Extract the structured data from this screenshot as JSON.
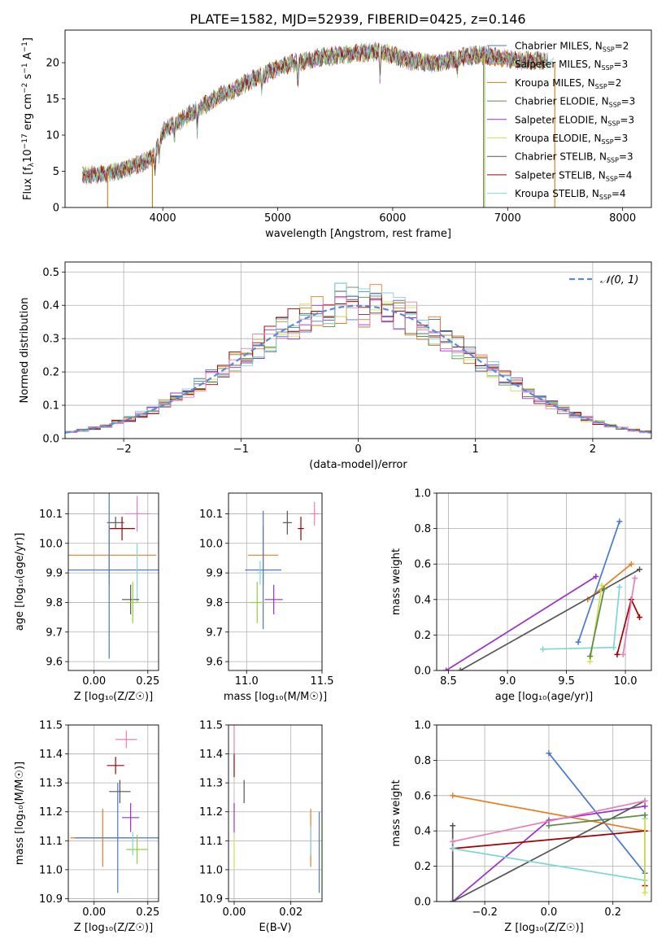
{
  "figure": {
    "title": "PLATE=1582, MJD=52939, FIBERID=0425, z=0.146",
    "colors": [
      "#4878cf",
      "#e67e22",
      "#b8860b",
      "#5a8a46",
      "#9b30c8",
      "#d4e04c",
      "#555555",
      "#a00000",
      "#7fd6d6",
      "#e87fb8",
      "#8fd03c",
      "#d94d2b"
    ]
  },
  "chart_data": [
    {
      "id": "spectrum",
      "type": "line",
      "xlabel": "wavelength [Angstrom, rest frame]",
      "ylabel_parts": [
        "Flux [f",
        "λ",
        "10",
        "−17",
        " erg cm",
        "−2",
        " s",
        "−1",
        " A",
        "−1",
        "]"
      ],
      "xlim": [
        3150,
        8250
      ],
      "ylim": [
        0,
        24.5
      ],
      "xticks": [
        4000,
        5000,
        6000,
        7000,
        8000
      ],
      "yticks": [
        0,
        5,
        10,
        15,
        20
      ],
      "grid": false,
      "legend_position": "top-right",
      "continuum": {
        "x": [
          3300,
          3450,
          3600,
          3700,
          3800,
          3900,
          3950,
          4000,
          4100,
          4200,
          4300,
          4400,
          4500,
          4600,
          4700,
          4800,
          4900,
          5000,
          5100,
          5200,
          5300,
          5400,
          5500,
          5600,
          5700,
          5800,
          5900,
          6000,
          6100,
          6200,
          6300,
          6400,
          6500,
          6600,
          6700,
          6800,
          6900,
          7000,
          7100,
          7200,
          7300,
          7350,
          7400
        ],
        "y": [
          4.5,
          4.6,
          5.0,
          5.5,
          6.0,
          6.8,
          8.2,
          10.5,
          11.5,
          12.5,
          13.5,
          14.5,
          15.5,
          16.0,
          17.0,
          17.8,
          18.5,
          19.3,
          19.8,
          20.1,
          20.5,
          20.8,
          21.0,
          21.1,
          21.3,
          21.5,
          21.5,
          21.0,
          20.5,
          20.2,
          20.0,
          20.0,
          20.3,
          20.8,
          21.0,
          21.0,
          20.8,
          20.5,
          20.3,
          20.3,
          20.3,
          20.2,
          20.0
        ]
      },
      "series": [
        {
          "name": "Chabrier MILES, N",
          "sub": "SSP",
          "n": "=2",
          "color": "#4878cf"
        },
        {
          "name": "Salpeter MILES, N",
          "sub": "SSP",
          "n": "=3",
          "color": "#e67e22"
        },
        {
          "name": "Kroupa MILES, N",
          "sub": "SSP",
          "n": "=2",
          "color": "#b8860b"
        },
        {
          "name": "Chabrier ELODIE, N",
          "sub": "SSP",
          "n": "=3",
          "color": "#5a8a46"
        },
        {
          "name": "Salpeter ELODIE, N",
          "sub": "SSP",
          "n": "=3",
          "color": "#9b30c8"
        },
        {
          "name": "Kroupa ELODIE, N",
          "sub": "SSP",
          "n": "=3",
          "color": "#d4e04c"
        },
        {
          "name": "Chabrier STELIB, N",
          "sub": "SSP",
          "n": "=3",
          "color": "#555555"
        },
        {
          "name": "Salpeter STELIB, N",
          "sub": "SSP",
          "n": "=4",
          "color": "#a00000"
        },
        {
          "name": "Kroupa STELIB, N",
          "sub": "SSP",
          "n": "=4",
          "color": "#7fd6d6"
        }
      ],
      "verticals": [
        {
          "x": 3520,
          "color": "#e67e22"
        },
        {
          "x": 3910,
          "color": "#b8860b"
        },
        {
          "x": 6790,
          "color": "#b8860b"
        },
        {
          "x": 6800,
          "color": "#7fd6d6"
        },
        {
          "x": 7410,
          "color": "#e67e22"
        }
      ]
    },
    {
      "id": "residuals",
      "type": "bar",
      "xlabel": "(data-model)/error",
      "ylabel": "Normed distribution",
      "xlim": [
        -2.5,
        2.5
      ],
      "ylim": [
        0,
        0.53
      ],
      "xticks": [
        -2,
        -1,
        0,
        1,
        2
      ],
      "yticks": [
        0.0,
        0.1,
        0.2,
        0.3,
        0.4,
        0.5
      ],
      "grid": true,
      "bin_width": 0.1,
      "legend_position": "top-right",
      "legend_label": "𝒩(0, 1)",
      "curve_color": "#5b8bd6"
    },
    {
      "id": "age-vs-z",
      "type": "scatter",
      "xlabel": "Z [log₁₀(Z/Z☉)]",
      "ylabel": "age  [log₁₀(age/yr)]",
      "xlim": [
        -0.12,
        0.3
      ],
      "ylim": [
        9.57,
        10.17
      ],
      "xticks": [
        0.0,
        0.25
      ],
      "yticks": [
        9.6,
        9.7,
        9.8,
        9.9,
        10.0,
        10.1
      ],
      "grid": true,
      "points": [
        {
          "x": 0.2,
          "y": 10.1,
          "xerr": 0.06,
          "yerr": 0.06,
          "color": "#e87fb8"
        },
        {
          "x": 0.1,
          "y": 10.07,
          "xerr": 0.04,
          "yerr": 0.02,
          "color": "#555555"
        },
        {
          "x": 0.13,
          "y": 10.05,
          "xerr": 0.06,
          "yerr": 0.04,
          "color": "#a00000"
        },
        {
          "x": 0.07,
          "y": 9.96,
          "xerr": 0.22,
          "yerr": 0.1,
          "color": "#e67e22"
        },
        {
          "x": 0.07,
          "y": 9.91,
          "xerr": 0.24,
          "yerr": 0.3,
          "color": "#4878cf"
        },
        {
          "x": 0.2,
          "y": 9.9,
          "xerr": 0.0,
          "yerr": 0.1,
          "color": "#7fd6d6"
        },
        {
          "x": 0.17,
          "y": 9.81,
          "xerr": 0.04,
          "yerr": 0.05,
          "color": "#555555"
        },
        {
          "x": 0.18,
          "y": 9.8,
          "xerr": 0.03,
          "yerr": 0.07,
          "color": "#8fd03c"
        }
      ]
    },
    {
      "id": "age-vs-mass",
      "type": "scatter",
      "xlabel": "mass [log₁₀(M/M☉)]",
      "ylabel": "",
      "xlim": [
        10.88,
        11.5
      ],
      "ylim": [
        9.57,
        10.17
      ],
      "xticks": [
        11.0,
        11.5
      ],
      "yticks": [
        9.6,
        9.7,
        9.8,
        9.9,
        10.0,
        10.1
      ],
      "grid": true,
      "points": [
        {
          "x": 11.45,
          "y": 10.1,
          "xerr": 0.03,
          "yerr": 0.04,
          "color": "#e87fb8"
        },
        {
          "x": 11.27,
          "y": 10.07,
          "xerr": 0.03,
          "yerr": 0.04,
          "color": "#555555"
        },
        {
          "x": 11.36,
          "y": 10.05,
          "xerr": 0.02,
          "yerr": 0.04,
          "color": "#a00000"
        },
        {
          "x": 11.11,
          "y": 9.96,
          "xerr": 0.1,
          "yerr": 0.1,
          "color": "#e67e22"
        },
        {
          "x": 11.11,
          "y": 9.91,
          "xerr": 0.12,
          "yerr": 0.2,
          "color": "#4878cf"
        },
        {
          "x": 11.09,
          "y": 9.9,
          "xerr": 0.02,
          "yerr": 0.04,
          "color": "#7fd6d6"
        },
        {
          "x": 11.18,
          "y": 9.81,
          "xerr": 0.06,
          "yerr": 0.05,
          "color": "#9b30c8"
        },
        {
          "x": 11.07,
          "y": 9.8,
          "xerr": 0.05,
          "yerr": 0.07,
          "color": "#8fd03c"
        }
      ]
    },
    {
      "id": "weight-vs-age",
      "type": "line",
      "xlabel": "age  [log₁₀(age/yr)]",
      "ylabel": "mass weight",
      "xlim": [
        8.4,
        10.22
      ],
      "ylim": [
        0,
        1.0
      ],
      "xticks": [
        8.5,
        9.0,
        9.5,
        10.0
      ],
      "yticks": [
        0.0,
        0.2,
        0.4,
        0.6,
        0.8,
        1.0
      ],
      "grid": true,
      "series": [
        {
          "color": "#4878cf",
          "x": [
            9.6,
            9.95
          ],
          "y": [
            0.16,
            0.84
          ]
        },
        {
          "color": "#e67e22",
          "x": [
            9.68,
            10.05
          ],
          "y": [
            0.4,
            0.6
          ]
        },
        {
          "color": "#9b30c8",
          "x": [
            8.48,
            9.75
          ],
          "y": [
            0.0,
            0.53
          ]
        },
        {
          "color": "#555555",
          "x": [
            8.6,
            10.12
          ],
          "y": [
            0.0,
            0.57
          ]
        },
        {
          "color": "#a00000",
          "x": [
            9.93,
            10.05,
            10.12
          ],
          "y": [
            0.09,
            0.4,
            0.3
          ]
        },
        {
          "color": "#7fd6d6",
          "x": [
            9.3,
            9.9,
            9.95
          ],
          "y": [
            0.12,
            0.13,
            0.47
          ]
        },
        {
          "color": "#d4e04c",
          "x": [
            9.7,
            9.8
          ],
          "y": [
            0.05,
            0.48
          ]
        },
        {
          "color": "#e87fb8",
          "x": [
            9.98,
            10.08
          ],
          "y": [
            0.09,
            0.52
          ]
        },
        {
          "color": "#5a8a46",
          "x": [
            9.7,
            9.82
          ],
          "y": [
            0.08,
            0.46
          ]
        }
      ]
    },
    {
      "id": "mass-vs-z",
      "type": "scatter",
      "xlabel": "Z [log₁₀(Z/Z☉)]",
      "ylabel": "mass [log₁₀(M/M☉)]",
      "xlim": [
        -0.12,
        0.3
      ],
      "ylim": [
        10.89,
        11.5
      ],
      "xticks": [
        0.0,
        0.25
      ],
      "yticks": [
        10.9,
        11.0,
        11.1,
        11.2,
        11.3,
        11.4,
        11.5
      ],
      "grid": true,
      "points": [
        {
          "x": 0.15,
          "y": 11.45,
          "xerr": 0.05,
          "yerr": 0.03,
          "color": "#e87fb8"
        },
        {
          "x": 0.1,
          "y": 11.36,
          "xerr": 0.04,
          "yerr": 0.03,
          "color": "#a00000"
        },
        {
          "x": 0.12,
          "y": 11.27,
          "xerr": 0.05,
          "yerr": 0.04,
          "color": "#555555"
        },
        {
          "x": 0.17,
          "y": 11.18,
          "xerr": 0.04,
          "yerr": 0.05,
          "color": "#9b30c8"
        },
        {
          "x": 0.04,
          "y": 11.11,
          "xerr": 0.15,
          "yerr": 0.1,
          "color": "#e67e22"
        },
        {
          "x": 0.11,
          "y": 11.11,
          "xerr": 0.2,
          "yerr": 0.19,
          "color": "#4878cf"
        },
        {
          "x": 0.18,
          "y": 11.09,
          "xerr": 0.0,
          "yerr": 0.04,
          "color": "#7fd6d6"
        },
        {
          "x": 0.2,
          "y": 11.07,
          "xerr": 0.05,
          "yerr": 0.05,
          "color": "#8fd03c"
        }
      ]
    },
    {
      "id": "mass-vs-ebv",
      "type": "scatter",
      "xlabel": "E(B-V)",
      "ylabel": "",
      "xlim": [
        -0.002,
        0.031
      ],
      "ylim": [
        10.89,
        11.5
      ],
      "xticks": [
        0.0,
        0.02
      ],
      "yticks": [
        10.9,
        11.0,
        11.1,
        11.2,
        11.3,
        11.4,
        11.5
      ],
      "grid": true,
      "points": [
        {
          "x": 0.0,
          "y": 11.45,
          "xerr": 0.0,
          "yerr": 0.05,
          "color": "#e87fb8"
        },
        {
          "x": 0.0,
          "y": 11.36,
          "xerr": 0.0,
          "yerr": 0.04,
          "color": "#a00000"
        },
        {
          "x": 0.0035,
          "y": 11.27,
          "xerr": 0.0,
          "yerr": 0.04,
          "color": "#555555"
        },
        {
          "x": 0.0,
          "y": 11.18,
          "xerr": 0.0,
          "yerr": 0.05,
          "color": "#9b30c8"
        },
        {
          "x": 0.0,
          "y": 11.06,
          "xerr": 0.0,
          "yerr": 0.06,
          "color": "#d4e04c"
        },
        {
          "x": 0.027,
          "y": 11.11,
          "xerr": 0.0,
          "yerr": 0.1,
          "color": "#e67e22"
        },
        {
          "x": 0.027,
          "y": 11.1,
          "xerr": 0.0,
          "yerr": 0.05,
          "color": "#7fd6d6"
        },
        {
          "x": 0.03,
          "y": 11.06,
          "xerr": 0.0,
          "yerr": 0.14,
          "color": "#4878cf"
        }
      ]
    },
    {
      "id": "weight-vs-z",
      "type": "line",
      "xlabel": "Z [log₁₀(Z/Z☉)]",
      "ylabel": "mass weight",
      "xlim": [
        -0.35,
        0.32
      ],
      "ylim": [
        0,
        1.0
      ],
      "xticks": [
        -0.2,
        0.0,
        0.2
      ],
      "yticks": [
        0.0,
        0.2,
        0.4,
        0.6,
        0.8,
        1.0
      ],
      "grid": true,
      "series": [
        {
          "color": "#4878cf",
          "x": [
            0.0,
            0.3
          ],
          "y": [
            0.84,
            0.16
          ]
        },
        {
          "color": "#e67e22",
          "x": [
            -0.3,
            0.3
          ],
          "y": [
            0.6,
            0.4
          ]
        },
        {
          "color": "#9b30c8",
          "x": [
            -0.3,
            0.0,
            0.3
          ],
          "y": [
            0.0,
            0.46,
            0.54
          ]
        },
        {
          "color": "#555555",
          "x": [
            -0.3,
            -0.3,
            0.3
          ],
          "y": [
            0.43,
            0.0,
            0.57
          ]
        },
        {
          "color": "#a00000",
          "x": [
            -0.3,
            0.3,
            0.3
          ],
          "y": [
            0.3,
            0.4,
            0.09
          ]
        },
        {
          "color": "#7fd6d6",
          "x": [
            -0.3,
            0.3,
            0.3
          ],
          "y": [
            0.3,
            0.12,
            0.47
          ]
        },
        {
          "color": "#e87fb8",
          "x": [
            -0.3,
            0.3
          ],
          "y": [
            0.34,
            0.57
          ]
        },
        {
          "color": "#d4e04c",
          "x": [
            0.3,
            0.3
          ],
          "y": [
            0.05,
            0.49
          ]
        },
        {
          "color": "#5a8a46",
          "x": [
            0.0,
            0.3
          ],
          "y": [
            0.43,
            0.49
          ]
        }
      ]
    }
  ]
}
